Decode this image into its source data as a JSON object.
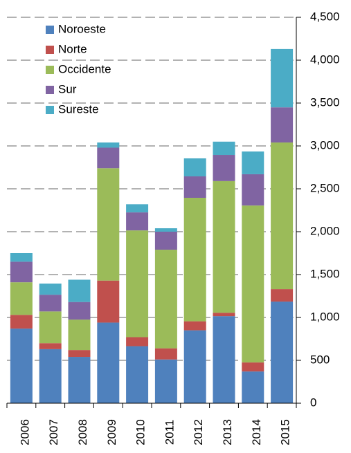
{
  "chart_data": {
    "type": "stacked-bar",
    "categories": [
      "2006",
      "2007",
      "2008",
      "2009",
      "2010",
      "2011",
      "2012",
      "2013",
      "2014",
      "2015"
    ],
    "series": [
      {
        "name": "Noroeste",
        "color": "#4f81bd",
        "values": [
          870,
          630,
          540,
          940,
          665,
          510,
          850,
          1015,
          370,
          1185
        ]
      },
      {
        "name": "Norte",
        "color": "#c0504d",
        "values": [
          160,
          70,
          80,
          490,
          105,
          130,
          105,
          40,
          105,
          145
        ]
      },
      {
        "name": "Occidente",
        "color": "#9bbb59",
        "values": [
          380,
          370,
          355,
          1310,
          1245,
          1150,
          1440,
          1535,
          1830,
          1710
        ]
      },
      {
        "name": "Sur",
        "color": "#8064a2",
        "values": [
          240,
          195,
          205,
          240,
          210,
          210,
          250,
          305,
          365,
          410
        ]
      },
      {
        "name": "Sureste",
        "color": "#4bacc6",
        "values": [
          100,
          130,
          260,
          60,
          95,
          40,
          210,
          155,
          265,
          680
        ]
      }
    ],
    "ylim": [
      0,
      4500
    ],
    "yticks": [
      0,
      500,
      {
        "value": 1000,
        "label": "1,000"
      },
      {
        "value": 1500,
        "label": "1,500"
      },
      {
        "value": 2000,
        "label": "2,000"
      },
      {
        "value": 2500,
        "label": "2,500"
      },
      {
        "value": 3000,
        "label": "3,000"
      },
      {
        "value": 3500,
        "label": "3,500"
      },
      {
        "value": 4000,
        "label": "4,000"
      },
      {
        "value": 4500,
        "label": "4,500"
      }
    ],
    "grid": true,
    "legend": "top-left"
  }
}
